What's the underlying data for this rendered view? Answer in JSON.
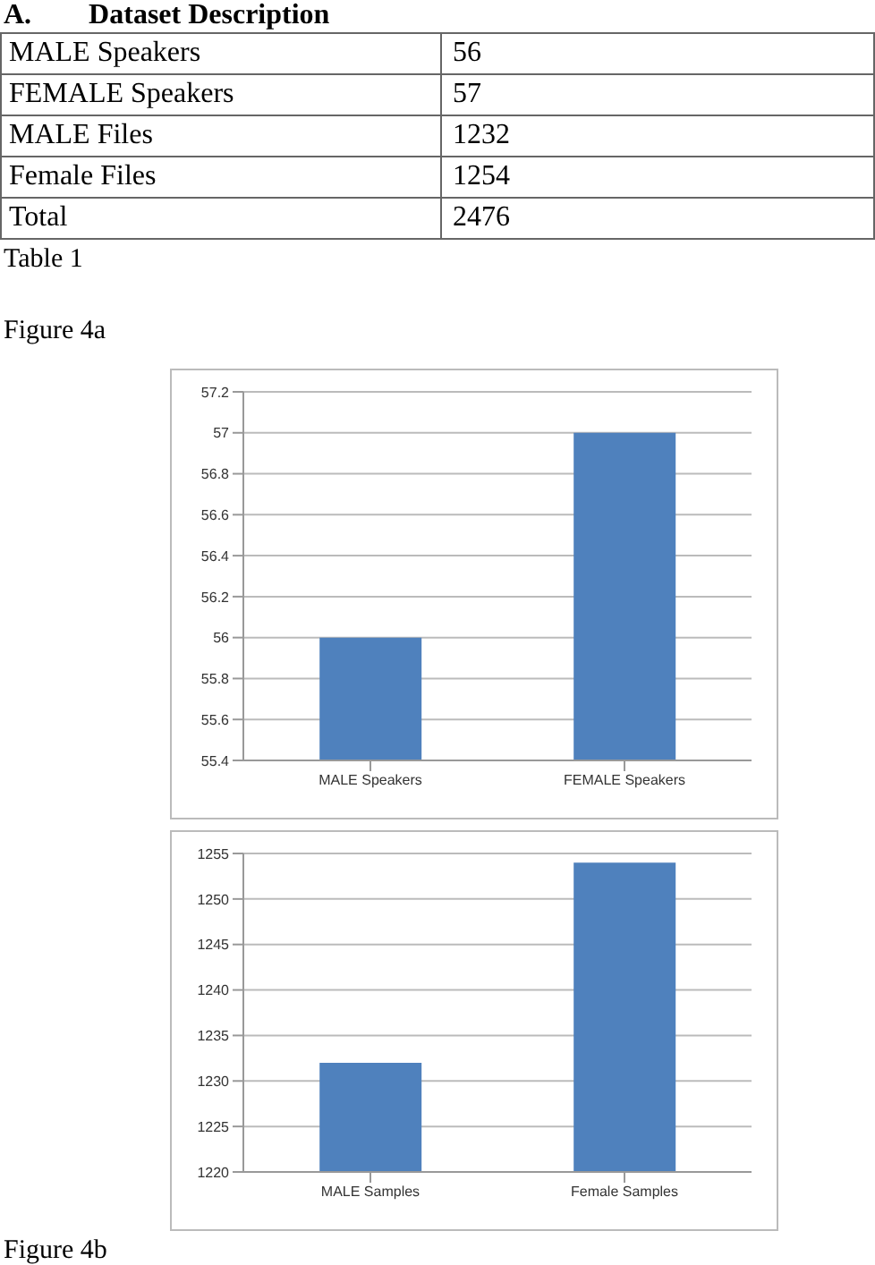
{
  "chart_data": [
    {
      "type": "other",
      "title": "A.        Dataset Description",
      "categories": [
        "MALE Speakers",
        "FEMALE Speakers",
        "MALE Files",
        "Female Files",
        "Total"
      ],
      "values": [
        56,
        57,
        1232,
        1254,
        2476
      ],
      "data_labels": true,
      "annotations": [
        "Table 1",
        "Figure 4a"
      ]
    },
    {
      "type": "bar",
      "categories": [
        "MALE Speakers",
        "FEMALE Speakers"
      ],
      "values": [
        56,
        57
      ],
      "color": "#4f81bd",
      "ylim": [
        55.4,
        57.2
      ],
      "yticks": [
        55.4,
        55.6,
        55.8,
        56,
        56.2,
        56.4,
        56.6,
        56.8,
        57,
        57.2
      ],
      "grid": "y"
    },
    {
      "type": "bar",
      "categories": [
        "MALE Samples",
        "Female Samples"
      ],
      "values": [
        1232,
        1254
      ],
      "color": "#4f81bd",
      "ylim": [
        1220,
        1255
      ],
      "yticks": [
        1220,
        1225,
        1230,
        1235,
        1240,
        1245,
        1250,
        1255
      ],
      "grid": "y",
      "annotations": [
        "Figure 4b"
      ]
    }
  ]
}
